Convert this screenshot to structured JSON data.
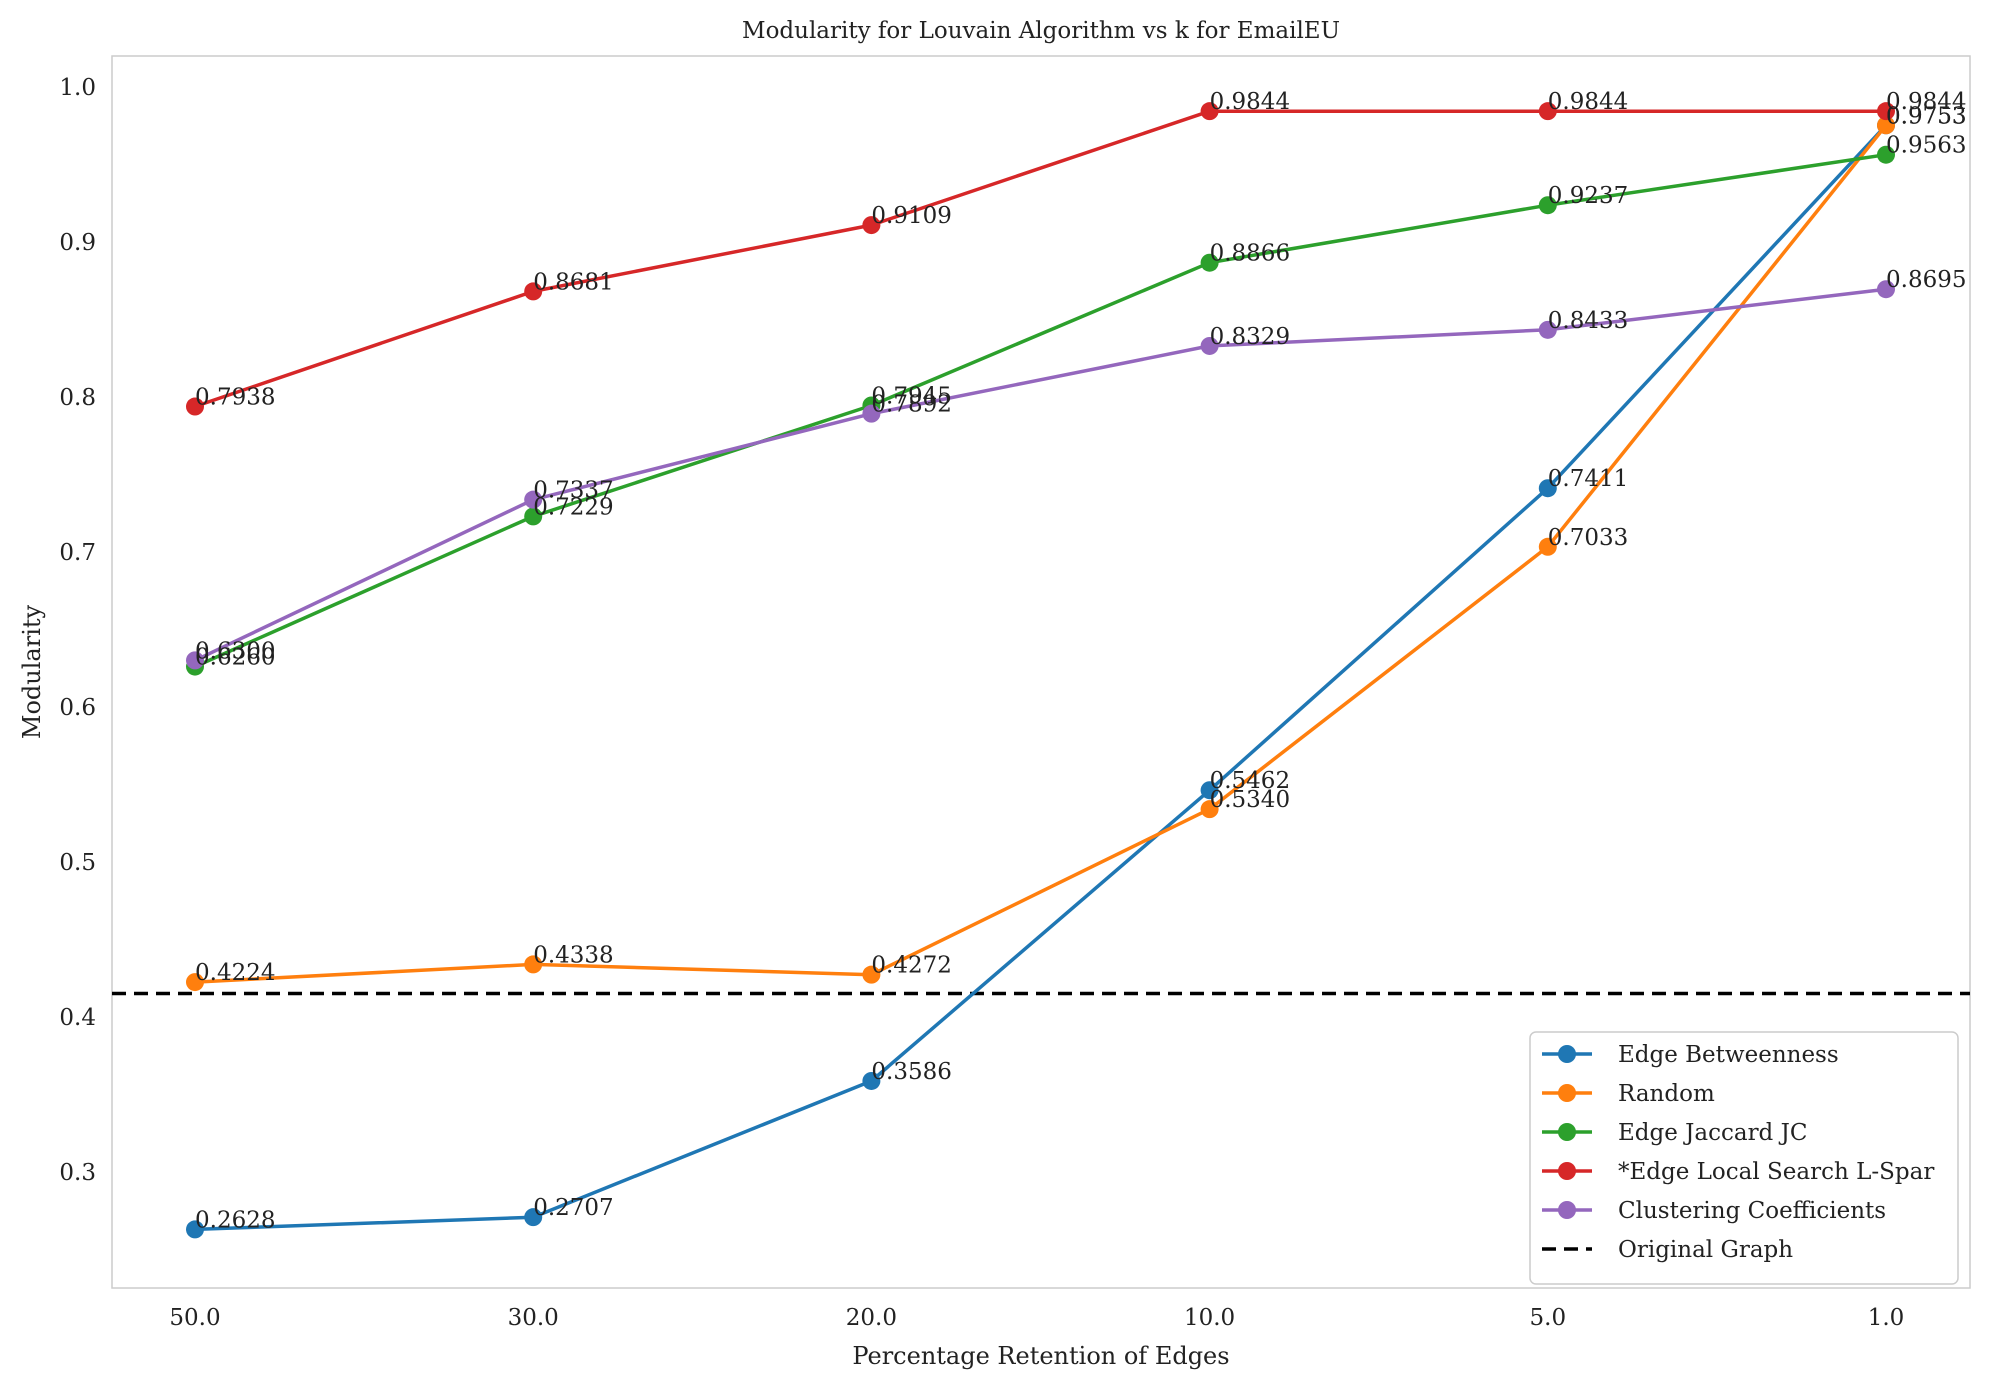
{
  "chart_data": {
    "type": "line",
    "title": "Modularity for Louvain Algorithm vs k for EmailEU",
    "xlabel": "Percentage Retention of Edges",
    "ylabel": "Modularity",
    "categories": [
      "50.0",
      "30.0",
      "20.0",
      "10.0",
      "5.0",
      "1.0"
    ],
    "ylim": [
      0.225,
      1.02
    ],
    "yticks": [
      "0.3",
      "0.4",
      "0.5",
      "0.6",
      "0.7",
      "0.8",
      "0.9",
      "1.0"
    ],
    "grid": false,
    "legend_position": "lower-right",
    "series": [
      {
        "name": "Edge Betweenness",
        "color": "#1f77b4",
        "values": [
          0.2628,
          0.2707,
          0.3586,
          0.5462,
          0.7411,
          0.9753
        ],
        "labels": [
          "0.2628",
          "0.2707",
          "0.3586",
          "0.5462",
          "0.7411",
          "0.9753"
        ]
      },
      {
        "name": "Random",
        "color": "#ff7f0e",
        "values": [
          0.4224,
          0.4338,
          0.4272,
          0.534,
          0.7033,
          0.9753
        ],
        "labels": [
          "0.4224",
          "0.4338",
          "0.4272",
          "0.5340",
          "0.7033",
          "0.9753"
        ]
      },
      {
        "name": "Edge Jaccard JC",
        "color": "#2ca02c",
        "values": [
          0.626,
          0.7229,
          0.7945,
          0.8866,
          0.9237,
          0.9563
        ],
        "labels": [
          "0.6260",
          "0.7229",
          "0.7945",
          "0.8866",
          "0.9237",
          "0.9563"
        ]
      },
      {
        "name": "*Edge Local Search L-Spar",
        "color": "#d62728",
        "values": [
          0.7938,
          0.8681,
          0.9109,
          0.9844,
          0.9844,
          0.9844
        ],
        "labels": [
          "0.7938",
          "0.8681",
          "0.9109",
          "0.9844",
          "0.9844",
          "0.9844"
        ]
      },
      {
        "name": "Clustering Coefficients",
        "color": "#9467bd",
        "values": [
          0.63,
          0.7337,
          0.7892,
          0.8329,
          0.8433,
          0.8695
        ],
        "labels": [
          "0.6300",
          "0.7337",
          "0.7892",
          "0.8329",
          "0.8433",
          "0.8695"
        ]
      }
    ],
    "reference_line": {
      "name": "Original Graph",
      "value": 0.415,
      "color": "#000000",
      "style": "dashed"
    }
  }
}
